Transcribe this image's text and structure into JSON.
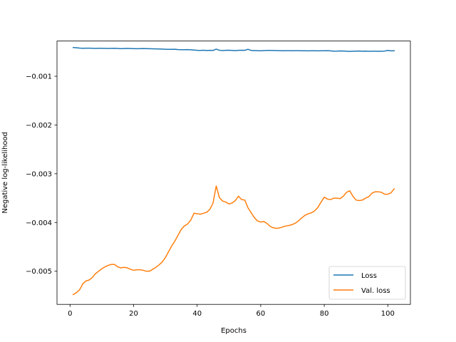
{
  "chart_data": {
    "type": "line",
    "title": "",
    "xlabel": "Epochs",
    "ylabel": "Negative log-likelihood",
    "xlim": [
      -4.1,
      107.1
    ],
    "ylim": [
      -0.00568,
      -0.000277
    ],
    "xticks": [
      0,
      20,
      40,
      60,
      80,
      100
    ],
    "xtick_labels": [
      "0",
      "20",
      "40",
      "60",
      "80",
      "100"
    ],
    "yticks": [
      -0.005,
      -0.004,
      -0.003,
      -0.002,
      -0.001
    ],
    "ytick_labels": [
      "−0.005",
      "−0.004",
      "−0.003",
      "−0.002",
      "−0.001"
    ],
    "grid": false,
    "legend_position": "lower-right",
    "series": [
      {
        "name": "Loss",
        "color": "#1f77b4",
        "x": [
          1,
          2,
          3,
          4,
          5,
          6,
          7,
          8,
          9,
          10,
          11,
          12,
          13,
          14,
          15,
          16,
          17,
          18,
          19,
          20,
          21,
          22,
          23,
          24,
          25,
          26,
          27,
          28,
          29,
          30,
          31,
          32,
          33,
          34,
          35,
          36,
          37,
          38,
          39,
          40,
          41,
          42,
          43,
          44,
          45,
          46,
          47,
          48,
          49,
          50,
          51,
          52,
          53,
          54,
          55,
          56,
          57,
          58,
          59,
          60,
          61,
          62,
          63,
          64,
          65,
          66,
          67,
          68,
          69,
          70,
          71,
          72,
          73,
          74,
          75,
          76,
          77,
          78,
          79,
          80,
          81,
          82,
          83,
          84,
          85,
          86,
          87,
          88,
          89,
          90,
          91,
          92,
          93,
          94,
          95,
          96,
          97,
          98,
          99,
          100,
          101,
          102
        ],
        "y": [
          -0.00041,
          -0.000415,
          -0.000422,
          -0.000425,
          -0.000424,
          -0.000423,
          -0.000425,
          -0.000428,
          -0.000426,
          -0.000425,
          -0.000427,
          -0.000429,
          -0.000428,
          -0.000426,
          -0.000429,
          -0.000432,
          -0.00043,
          -0.000428,
          -0.000431,
          -0.000433,
          -0.000434,
          -0.000432,
          -0.000431,
          -0.000433,
          -0.000435,
          -0.000437,
          -0.000438,
          -0.00044,
          -0.000442,
          -0.000445,
          -0.000448,
          -0.000447,
          -0.000446,
          -0.000452,
          -0.000455,
          -0.000454,
          -0.000453,
          -0.000456,
          -0.000462,
          -0.000468,
          -0.00047,
          -0.000466,
          -0.000471,
          -0.000467,
          -0.00047,
          -0.000443,
          -0.000466,
          -0.000472,
          -0.000468,
          -0.000466,
          -0.000469,
          -0.000475,
          -0.000468,
          -0.000465,
          -0.000467,
          -0.000446,
          -0.00047,
          -0.000472,
          -0.000474,
          -0.000476,
          -0.000473,
          -0.00047,
          -0.000469,
          -0.000471,
          -0.000473,
          -0.000475,
          -0.000476,
          -0.000474,
          -0.000475,
          -0.000476,
          -0.000475,
          -0.000474,
          -0.000476,
          -0.000477,
          -0.000478,
          -0.000476,
          -0.000477,
          -0.000478,
          -0.000477,
          -0.000476,
          -0.000475,
          -0.000478,
          -0.000485,
          -0.000484,
          -0.000481,
          -0.000482,
          -0.000485,
          -0.000489,
          -0.000486,
          -0.000483,
          -0.000482,
          -0.000485,
          -0.000483,
          -0.000487,
          -0.000486,
          -0.000485,
          -0.000487,
          -0.000485,
          -0.000483,
          -0.000469,
          -0.000478,
          -0.000477
        ]
      },
      {
        "name": "Val. loss",
        "color": "#ff7f0e",
        "x": [
          1,
          2,
          3,
          4,
          5,
          6,
          7,
          8,
          9,
          10,
          11,
          12,
          13,
          14,
          15,
          16,
          17,
          18,
          19,
          20,
          21,
          22,
          23,
          24,
          25,
          26,
          27,
          28,
          29,
          30,
          31,
          32,
          33,
          34,
          35,
          36,
          37,
          38,
          39,
          40,
          41,
          42,
          43,
          44,
          45,
          46,
          47,
          48,
          49,
          50,
          51,
          52,
          53,
          54,
          55,
          56,
          57,
          58,
          59,
          60,
          61,
          62,
          63,
          64,
          65,
          66,
          67,
          68,
          69,
          70,
          71,
          72,
          73,
          74,
          75,
          76,
          77,
          78,
          79,
          80,
          81,
          82,
          83,
          84,
          85,
          86,
          87,
          88,
          89,
          90,
          91,
          92,
          93,
          94,
          95,
          96,
          97,
          98,
          99,
          100,
          101,
          102
        ],
        "y": [
          -0.00548,
          -0.00544,
          -0.00538,
          -0.00526,
          -0.0052,
          -0.00518,
          -0.00513,
          -0.00505,
          -0.005,
          -0.00495,
          -0.00491,
          -0.00488,
          -0.00486,
          -0.00486,
          -0.00491,
          -0.00493,
          -0.00492,
          -0.00493,
          -0.00496,
          -0.00498,
          -0.00497,
          -0.00497,
          -0.00498,
          -0.005,
          -0.005,
          -0.00496,
          -0.00492,
          -0.00487,
          -0.00481,
          -0.00472,
          -0.0046,
          -0.00448,
          -0.00438,
          -0.00426,
          -0.00414,
          -0.00407,
          -0.00403,
          -0.00395,
          -0.00381,
          -0.00382,
          -0.00383,
          -0.00381,
          -0.00379,
          -0.00373,
          -0.0036,
          -0.00325,
          -0.00349,
          -0.00356,
          -0.00358,
          -0.00362,
          -0.0036,
          -0.00355,
          -0.00346,
          -0.00353,
          -0.00354,
          -0.0037,
          -0.0038,
          -0.0039,
          -0.00397,
          -0.00399,
          -0.00398,
          -0.00402,
          -0.00408,
          -0.00411,
          -0.00412,
          -0.00411,
          -0.00409,
          -0.00407,
          -0.00406,
          -0.00404,
          -0.00401,
          -0.00396,
          -0.0039,
          -0.00385,
          -0.00382,
          -0.0038,
          -0.00376,
          -0.00369,
          -0.00358,
          -0.00348,
          -0.00352,
          -0.00353,
          -0.0035,
          -0.0035,
          -0.00351,
          -0.00346,
          -0.00338,
          -0.00335,
          -0.00346,
          -0.00354,
          -0.00355,
          -0.00354,
          -0.0035,
          -0.00347,
          -0.0034,
          -0.00337,
          -0.00337,
          -0.00338,
          -0.00342,
          -0.00342,
          -0.00339,
          -0.00331
        ]
      }
    ]
  }
}
